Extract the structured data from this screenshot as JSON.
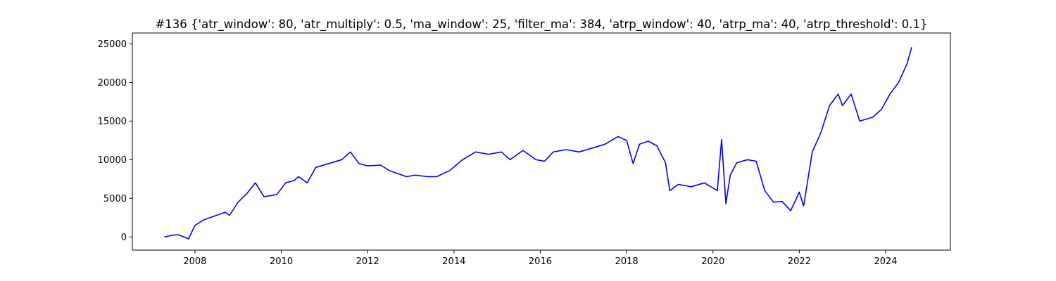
{
  "chart_data": {
    "type": "line",
    "title": "#136 {'atr_window': 80, 'atr_multiply': 0.5, 'ma_window': 25, 'filter_ma': 384, 'atrp_window': 40, 'atrp_ma': 40, 'atrp_threshold': 0.1}",
    "xlabel": "",
    "ylabel": "",
    "xlim": [
      2006.55,
      2025.5
    ],
    "ylim": [
      -1700,
      26400
    ],
    "x_ticks": [
      2008,
      2010,
      2012,
      2014,
      2016,
      2018,
      2020,
      2022,
      2024
    ],
    "y_ticks": [
      0,
      5000,
      10000,
      15000,
      20000,
      25000
    ],
    "grid": false,
    "legend": "none",
    "series": [
      {
        "color": "#0000ff",
        "x": [
          2007.3,
          2007.45,
          2007.6,
          2007.75,
          2007.85,
          2008.0,
          2008.2,
          2008.45,
          2008.7,
          2008.8,
          2009.0,
          2009.2,
          2009.4,
          2009.6,
          2009.9,
          2010.1,
          2010.3,
          2010.4,
          2010.6,
          2010.8,
          2011.1,
          2011.4,
          2011.6,
          2011.8,
          2012.0,
          2012.3,
          2012.5,
          2012.7,
          2012.9,
          2013.1,
          2013.4,
          2013.6,
          2013.9,
          2014.2,
          2014.5,
          2014.8,
          2015.1,
          2015.3,
          2015.6,
          2015.9,
          2016.1,
          2016.3,
          2016.6,
          2016.9,
          2017.2,
          2017.5,
          2017.8,
          2018.0,
          2018.15,
          2018.3,
          2018.5,
          2018.7,
          2018.9,
          2019.0,
          2019.2,
          2019.5,
          2019.8,
          2020.1,
          2020.2,
          2020.3,
          2020.4,
          2020.55,
          2020.8,
          2021.0,
          2021.2,
          2021.4,
          2021.6,
          2021.8,
          2022.0,
          2022.1,
          2022.3,
          2022.5,
          2022.7,
          2022.9,
          2023.0,
          2023.2,
          2023.4,
          2023.7,
          2023.9,
          2024.1,
          2024.3,
          2024.5,
          2024.6
        ],
        "values": [
          0,
          200,
          300,
          0,
          -250,
          1500,
          2200,
          2700,
          3200,
          2800,
          4500,
          5600,
          7000,
          5200,
          5500,
          7000,
          7300,
          7800,
          7000,
          9000,
          9500,
          10000,
          11000,
          9500,
          9200,
          9300,
          8600,
          8200,
          7800,
          8000,
          7800,
          7800,
          8600,
          10000,
          11000,
          10700,
          11000,
          10000,
          11200,
          10000,
          9800,
          11000,
          11300,
          11000,
          11500,
          12000,
          13000,
          12500,
          9500,
          12000,
          12400,
          11800,
          9600,
          6000,
          6800,
          6500,
          7000,
          6000,
          12600,
          4300,
          8000,
          9600,
          10000,
          9800,
          6000,
          4500,
          4600,
          3400,
          5800,
          4000,
          11000,
          13500,
          17000,
          18500,
          17000,
          18500,
          15000,
          15500,
          16500,
          18500,
          20000,
          22500,
          24500
        ]
      }
    ]
  }
}
